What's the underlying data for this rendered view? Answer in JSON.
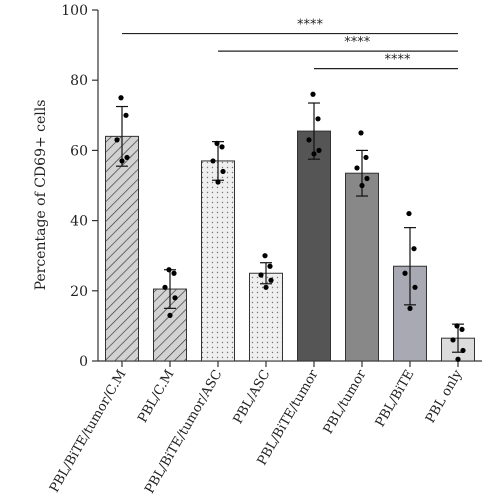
{
  "chart_data": {
    "type": "bar",
    "title": "",
    "xlabel": "",
    "ylabel": "Percentage of CD69+ cells",
    "ylim": [
      0,
      100
    ],
    "yticks": [
      0,
      20,
      40,
      60,
      80,
      100
    ],
    "grid": false,
    "legend": "none",
    "categories": [
      "PBL/BiTE/tumor/C.M",
      "PBL/C.M",
      "PBL/BiTE/tumor/ASC",
      "PBL/ASC",
      "PBL/BiTE/tumor",
      "PBL/tumor",
      "PBL/BiTE",
      "PBL only"
    ],
    "values": [
      64,
      20.5,
      57,
      25,
      65.5,
      53.5,
      27,
      6.5
    ],
    "errors": [
      8.5,
      5.5,
      5.5,
      3,
      8,
      6.5,
      11,
      4
    ],
    "points": [
      [
        75,
        70,
        63,
        58,
        57
      ],
      [
        26,
        25,
        21,
        18,
        13
      ],
      [
        62,
        61,
        57,
        54,
        51
      ],
      [
        30,
        27,
        24.5,
        23,
        21
      ],
      [
        76,
        69,
        63,
        60,
        59
      ],
      [
        65,
        58,
        55,
        52,
        50
      ],
      [
        42,
        32,
        25,
        21,
        15
      ],
      [
        10,
        9,
        6,
        3,
        0.5
      ]
    ],
    "bar_styles": [
      {
        "fill": "#d2d2d2",
        "pattern": "hatch"
      },
      {
        "fill": "#d2d2d2",
        "pattern": "hatch"
      },
      {
        "fill": "#ededed",
        "pattern": "dots"
      },
      {
        "fill": "#ededed",
        "pattern": "dots"
      },
      {
        "fill": "#555555",
        "pattern": "none"
      },
      {
        "fill": "#888888",
        "pattern": "none"
      },
      {
        "fill": "#a9a9b3",
        "pattern": "none"
      },
      {
        "fill": "#dcdcdc",
        "pattern": "none"
      }
    ],
    "significance": [
      {
        "from": 0,
        "to": 7,
        "label": "****",
        "y": 95
      },
      {
        "from": 2,
        "to": 7,
        "label": "****",
        "y": 90
      },
      {
        "from": 4,
        "to": 7,
        "label": "****",
        "y": 85
      }
    ]
  }
}
